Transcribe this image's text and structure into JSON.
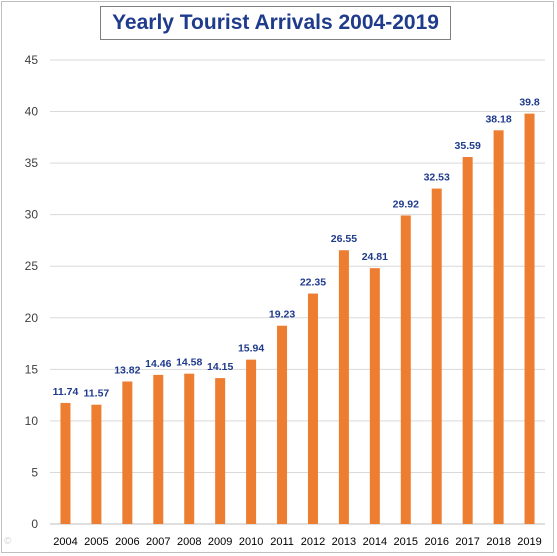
{
  "chart_data": {
    "type": "bar",
    "title": "Yearly Tourist Arrivals 2004-2019",
    "xlabel": "",
    "ylabel": "",
    "categories": [
      "2004",
      "2005",
      "2006",
      "2007",
      "2008",
      "2009",
      "2010",
      "2011",
      "2012",
      "2013",
      "2014",
      "2015",
      "2016",
      "2017",
      "2018",
      "2019"
    ],
    "values": [
      11.74,
      11.57,
      13.82,
      14.46,
      14.58,
      14.15,
      15.94,
      19.23,
      22.35,
      26.55,
      24.81,
      29.92,
      32.53,
      35.59,
      38.18,
      39.8
    ],
    "ylim": [
      0,
      45
    ],
    "yticks": [
      0,
      5,
      10,
      15,
      20,
      25,
      30,
      35,
      40,
      45
    ],
    "grid": true,
    "legend": "none",
    "bar_color": "#ed7d31",
    "label_color": "#1f3b8c"
  }
}
